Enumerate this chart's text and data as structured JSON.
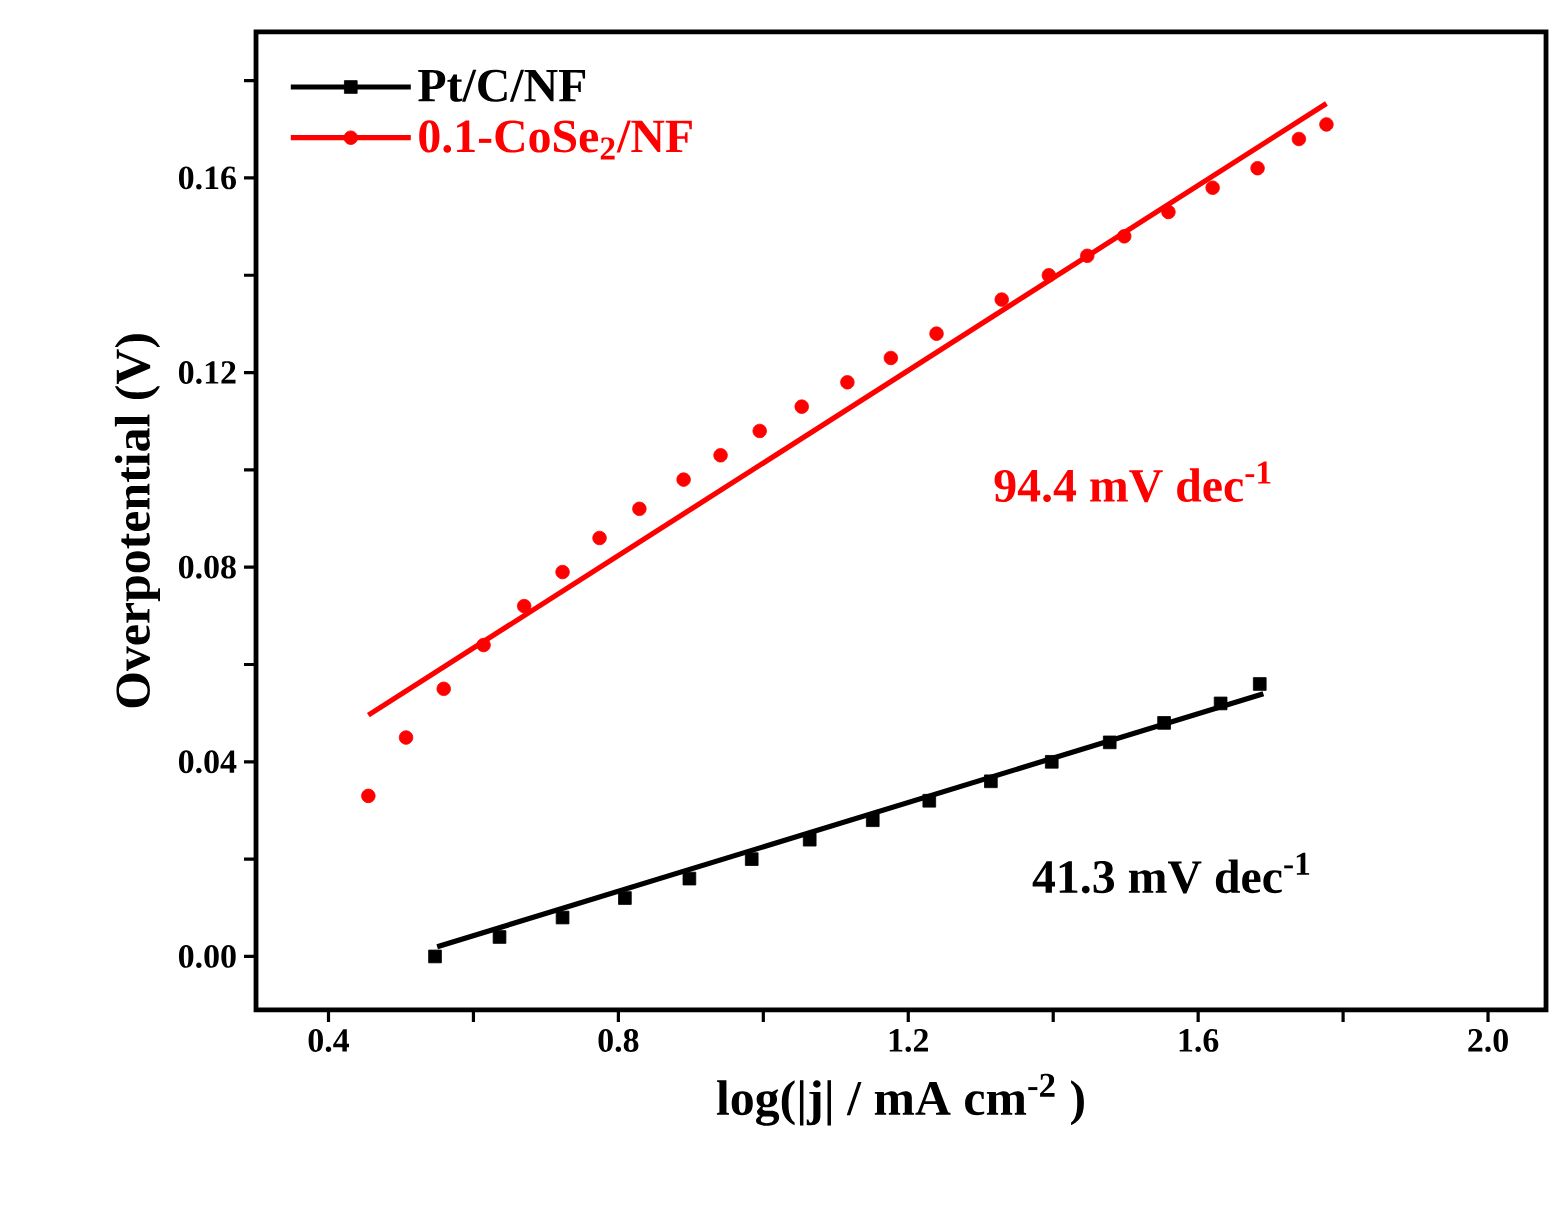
{
  "chart_data": {
    "type": "scatter",
    "xlabel": "log(|j| / mA cm$^{-2}$ )",
    "ylabel": "Overpotential (V)",
    "xlim": [
      0.3,
      2.08
    ],
    "ylim": [
      -0.011,
      0.19
    ],
    "xticks": [
      0.4,
      {
        "value": 0.6,
        "label": null
      },
      0.8,
      {
        "value": 1.0,
        "label": null
      },
      1.2,
      {
        "value": 1.4,
        "label": null
      },
      1.6,
      {
        "value": 1.8,
        "label": null
      },
      {
        "value": 2.0,
        "label": "2.0"
      }
    ],
    "yticks": [
      {
        "value": 0,
        "label": "0.00"
      },
      {
        "value": 0.02,
        "label": null
      },
      0.04,
      {
        "value": 0.06,
        "label": null
      },
      0.08,
      {
        "value": 0.1,
        "label": null
      },
      0.12,
      {
        "value": 0.14,
        "label": null
      },
      0.16,
      {
        "value": 0.18,
        "label": null
      }
    ],
    "legend": "top left",
    "grid": false,
    "series": [
      {
        "name": "Pt/C/NF",
        "marker": "square",
        "color": "#000000",
        "x": [
          0.547,
          0.636,
          0.723,
          0.809,
          0.898,
          0.984,
          1.064,
          1.151,
          1.229,
          1.314,
          1.398,
          1.478,
          1.553,
          1.631,
          1.685
        ],
        "values": [
          0.0,
          0.004,
          0.008,
          0.012,
          0.016,
          0.02,
          0.024,
          0.028,
          0.032,
          0.036,
          0.04,
          0.044,
          0.048,
          0.052,
          0.056
        ]
      },
      {
        "name": "0.1-CoSe$_{2}$/NF",
        "marker": "circle",
        "color": "#ff0000",
        "x": [
          0.455,
          0.507,
          0.559,
          0.614,
          0.67,
          0.723,
          0.774,
          0.829,
          0.89,
          0.941,
          0.995,
          1.053,
          1.116,
          1.176,
          1.239,
          1.329,
          1.394,
          1.447,
          1.498,
          1.559,
          1.62,
          1.682,
          1.739,
          1.777
        ],
        "values": [
          0.033,
          0.045,
          0.055,
          0.064,
          0.072,
          0.079,
          0.086,
          0.092,
          0.098,
          0.103,
          0.108,
          0.113,
          0.118,
          0.123,
          0.128,
          0.135,
          0.14,
          0.144,
          0.148,
          0.153,
          0.158,
          0.162,
          0.168,
          0.171
        ]
      },
      {
        "type": "line",
        "marker": "none",
        "color": "#000000",
        "x": [
          0.55,
          1.69
        ],
        "values": [
          0.002,
          0.054
        ]
      },
      {
        "type": "line",
        "marker": "none",
        "color": "#ff0000",
        "x": [
          0.455,
          1.777
        ],
        "values": [
          0.0496,
          0.1753
        ]
      }
    ],
    "annotations": [
      "41.3 mV dec$^{-1}$",
      "94.4 mV dec$^{-1}$"
    ]
  }
}
